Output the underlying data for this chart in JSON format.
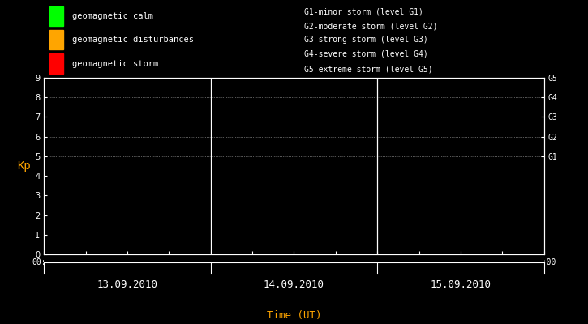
{
  "background_color": "#000000",
  "plot_bg_color": "#000000",
  "text_color": "#ffffff",
  "orange_color": "#ffa500",
  "title_x_label": "Time (UT)",
  "ylabel": "Kp",
  "ylim": [
    0,
    9
  ],
  "yticks": [
    0,
    1,
    2,
    3,
    4,
    5,
    6,
    7,
    8,
    9
  ],
  "grid_color": "#ffffff",
  "grid_dotted_levels": [
    5,
    6,
    7,
    8,
    9
  ],
  "days": [
    "13.09.2010",
    "14.09.2010",
    "15.09.2010"
  ],
  "right_labels": [
    {
      "y": 5,
      "text": "G1"
    },
    {
      "y": 6,
      "text": "G2"
    },
    {
      "y": 7,
      "text": "G3"
    },
    {
      "y": 8,
      "text": "G4"
    },
    {
      "y": 9,
      "text": "G5"
    }
  ],
  "legend_items": [
    {
      "color": "#00ff00",
      "label": "geomagnetic calm"
    },
    {
      "color": "#ffa500",
      "label": "geomagnetic disturbances"
    },
    {
      "color": "#ff0000",
      "label": "geomagnetic storm"
    }
  ],
  "storm_labels": [
    "G1-minor storm (level G1)",
    "G2-moderate storm (level G2)",
    "G3-strong storm (level G3)",
    "G4-severe storm (level G4)",
    "G5-extreme storm (level G5)"
  ],
  "font_family": "monospace",
  "legend_fontsize": 7.5,
  "storm_fontsize": 7.0,
  "ylabel_fontsize": 10,
  "tick_fontsize": 7,
  "date_fontsize": 9,
  "total_days": 3
}
